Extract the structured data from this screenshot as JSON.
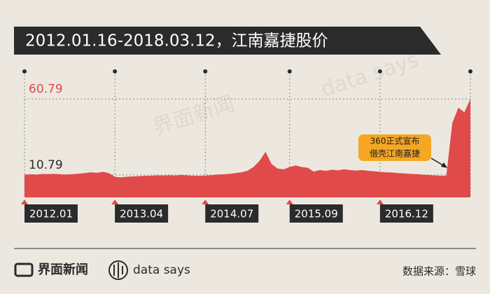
{
  "chart_data": {
    "type": "area",
    "title": "2012.01.16-2018.03.12，江南嘉捷股价",
    "categories": [
      "2012.01",
      null,
      null,
      null,
      null,
      null,
      null,
      null,
      null,
      null,
      null,
      null,
      null,
      null,
      null,
      "2013.04",
      null,
      null,
      null,
      null,
      null,
      null,
      null,
      null,
      null,
      null,
      null,
      null,
      null,
      null,
      "2014.07",
      null,
      null,
      null,
      null,
      null,
      null,
      null,
      null,
      null,
      null,
      null,
      null,
      null,
      "2015.09",
      null,
      null,
      null,
      null,
      null,
      null,
      null,
      null,
      null,
      null,
      null,
      null,
      null,
      null,
      "2016.12",
      null,
      null,
      null,
      null,
      null,
      null,
      null,
      null,
      null,
      null,
      null,
      null,
      null,
      null,
      null
    ],
    "values": [
      11,
      11.2,
      11,
      11.4,
      11.3,
      11.5,
      11.2,
      11,
      11.3,
      11.6,
      12,
      12.5,
      12.2,
      12.8,
      12,
      9.5,
      9.2,
      9.6,
      9.8,
      10,
      10.2,
      10.3,
      10.5,
      10.4,
      10.6,
      10.4,
      10.8,
      10.5,
      10.3,
      10.2,
      10.4,
      10.6,
      11,
      11.2,
      11.5,
      12,
      12.5,
      13.5,
      16,
      20,
      26,
      18,
      15,
      14.5,
      16,
      17,
      16,
      15.5,
      13,
      14,
      13.5,
      14.2,
      13.8,
      14.5,
      14,
      13.6,
      14,
      13.5,
      13.2,
      12.8,
      12.5,
      12.4,
      12,
      11.8,
      11.5,
      11.3,
      11,
      10.8,
      10.5,
      10.3,
      10.2,
      45,
      55,
      52,
      60.79
    ],
    "color": "#e04a4a",
    "ylim": [
      -4,
      66
    ],
    "yticks": [
      10.79,
      60.79
    ],
    "ytick_colors": [
      "#2b2b2b",
      "#e04a4a"
    ],
    "grid": true,
    "annotation": [
      "360正式宣布",
      "借壳江南嘉捷"
    ]
  },
  "footer": {
    "brand": "界面新闻",
    "partner": "data says",
    "source": "数据来源：雪球"
  }
}
